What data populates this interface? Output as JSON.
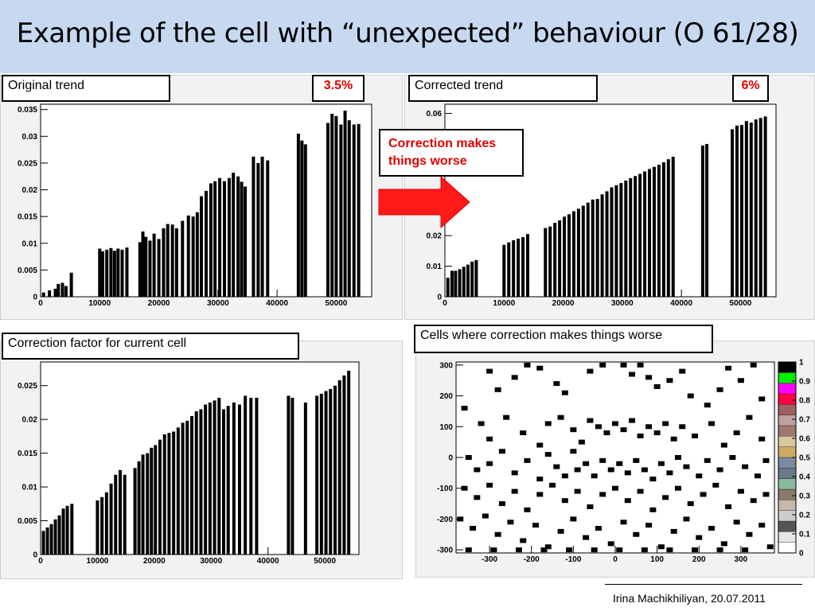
{
  "slide": {
    "title": "Example of the cell with “unexpected” behaviour (O 61/28)",
    "footer": "Irina Machikhiliyan, 20.07.2011",
    "note": "Correction makes things worse"
  },
  "panels": {
    "original": {
      "label": "Original trend",
      "percent": "3.5%"
    },
    "corrected": {
      "label": "Corrected trend",
      "percent": "6%"
    },
    "factor": {
      "label": "Correction factor for current cell"
    },
    "cells": {
      "label": "Cells where correction makes things worse"
    }
  },
  "colors": {
    "accent_red": "#ff1a1a",
    "title_bg": "#c6d9f1"
  },
  "icons": {
    "arrow": "right-arrow-icon"
  },
  "chart_data": [
    {
      "type": "bar",
      "name": "original",
      "xlim": [
        0,
        56000
      ],
      "ylim": [
        0,
        0.036
      ],
      "xticks": [
        0,
        10000,
        20000,
        30000,
        40000,
        50000
      ],
      "xtick_labels": [
        "0",
        "10000",
        "20000",
        "30000",
        "40000",
        "50000"
      ],
      "yticks": [
        0,
        0.005,
        0.01,
        0.015,
        0.02,
        0.025,
        0.03,
        0.035
      ],
      "ytick_labels": [
        "0",
        "0.005",
        "0.01",
        "0.015",
        "0.02",
        "0.025",
        "0.03",
        "0.035"
      ],
      "x": [
        500,
        1500,
        2500,
        3000,
        3700,
        4300,
        5200,
        10000,
        10500,
        11200,
        11900,
        12500,
        13100,
        13800,
        14600,
        16800,
        17300,
        17800,
        18500,
        19200,
        20000,
        20800,
        21500,
        22300,
        23000,
        24000,
        25000,
        25800,
        26500,
        27200,
        28000,
        28800,
        29500,
        30300,
        31100,
        31900,
        32600,
        33400,
        34000,
        34600,
        36000,
        36800,
        37500,
        38400,
        43600,
        44200,
        44800,
        48600,
        49300,
        50000,
        50800,
        51500,
        52200,
        53000,
        53800
      ],
      "y": [
        0.0008,
        0.0012,
        0.0015,
        0.0024,
        0.0026,
        0.002,
        0.0045,
        0.009,
        0.0085,
        0.0088,
        0.0091,
        0.0086,
        0.009,
        0.0088,
        0.0092,
        0.0102,
        0.0122,
        0.0112,
        0.0105,
        0.0118,
        0.0108,
        0.0128,
        0.0136,
        0.0135,
        0.0128,
        0.0142,
        0.0152,
        0.015,
        0.0158,
        0.0188,
        0.0198,
        0.0212,
        0.0216,
        0.0222,
        0.0216,
        0.0222,
        0.0232,
        0.0225,
        0.0215,
        0.0206,
        0.0262,
        0.025,
        0.0262,
        0.0255,
        0.0305,
        0.0292,
        0.0285,
        0.0325,
        0.0342,
        0.0338,
        0.0322,
        0.0348,
        0.033,
        0.0322,
        0.0323
      ]
    },
    {
      "type": "bar",
      "name": "corrected",
      "xlim": [
        0,
        56000
      ],
      "ylim": [
        0,
        0.063
      ],
      "xticks": [
        0,
        10000,
        20000,
        30000,
        40000,
        50000
      ],
      "xtick_labels": [
        "0",
        "10000",
        "20000",
        "30000",
        "40000",
        "50000"
      ],
      "yticks": [
        0,
        0.01,
        0.02,
        0.06
      ],
      "ytick_labels": [
        "0",
        "0.01",
        "0.02",
        "0.06"
      ],
      "x": [
        500,
        1200,
        1800,
        2500,
        3200,
        3900,
        4600,
        5300,
        10000,
        10800,
        11600,
        12400,
        13200,
        14000,
        17000,
        17800,
        18600,
        19400,
        20200,
        21000,
        21800,
        22600,
        23400,
        24200,
        25000,
        25800,
        26600,
        27400,
        28200,
        29000,
        29800,
        30600,
        31400,
        32200,
        33000,
        33800,
        34600,
        35400,
        36200,
        37000,
        37800,
        38600,
        43600,
        44300,
        48600,
        49400,
        50200,
        51000,
        51800,
        52600,
        53400,
        54200
      ],
      "y": [
        0.0062,
        0.0085,
        0.0085,
        0.009,
        0.0098,
        0.0105,
        0.0115,
        0.012,
        0.017,
        0.0178,
        0.0185,
        0.019,
        0.0195,
        0.0205,
        0.0225,
        0.023,
        0.0242,
        0.025,
        0.0262,
        0.027,
        0.028,
        0.0288,
        0.0298,
        0.0308,
        0.0318,
        0.032,
        0.0335,
        0.0345,
        0.0358,
        0.0365,
        0.0372,
        0.038,
        0.0388,
        0.0395,
        0.0402,
        0.041,
        0.0418,
        0.0425,
        0.0432,
        0.044,
        0.045,
        0.0458,
        0.0495,
        0.05,
        0.0548,
        0.056,
        0.0562,
        0.0575,
        0.057,
        0.058,
        0.0585,
        0.059
      ]
    },
    {
      "type": "bar",
      "name": "factor",
      "xlim": [
        0,
        56000
      ],
      "ylim": [
        0,
        0.0285
      ],
      "xticks": [
        0,
        10000,
        20000,
        30000,
        40000,
        50000
      ],
      "xtick_labels": [
        "0",
        "10000",
        "20000",
        "30000",
        "40000",
        "50000"
      ],
      "yticks": [
        0,
        0.005,
        0.01,
        0.015,
        0.02,
        0.025
      ],
      "ytick_labels": [
        "0",
        "0.005",
        "0.01",
        "0.015",
        "0.02",
        "0.025"
      ],
      "x": [
        500,
        1200,
        1900,
        2600,
        3300,
        4000,
        4700,
        5500,
        10000,
        10800,
        11600,
        12400,
        13200,
        14000,
        14800,
        16600,
        17300,
        18000,
        18800,
        19500,
        20200,
        21000,
        21800,
        22600,
        23400,
        24200,
        25000,
        25800,
        26600,
        27400,
        28200,
        29000,
        29800,
        30600,
        31400,
        32200,
        33000,
        34000,
        35000,
        36000,
        37000,
        38000,
        43600,
        44300,
        46600,
        48600,
        49400,
        50200,
        51000,
        51800,
        52600,
        53400,
        54200
      ],
      "y": [
        0.0035,
        0.004,
        0.0045,
        0.0052,
        0.0058,
        0.0068,
        0.0072,
        0.0075,
        0.008,
        0.0085,
        0.0092,
        0.0105,
        0.0118,
        0.0125,
        0.0118,
        0.0128,
        0.0138,
        0.0148,
        0.015,
        0.0158,
        0.0162,
        0.017,
        0.0178,
        0.018,
        0.0182,
        0.0188,
        0.0195,
        0.0198,
        0.0205,
        0.0212,
        0.0215,
        0.0222,
        0.0225,
        0.0228,
        0.0232,
        0.0215,
        0.022,
        0.0225,
        0.0222,
        0.0235,
        0.0232,
        0.0232,
        0.0235,
        0.0232,
        0.0225,
        0.0235,
        0.0238,
        0.0242,
        0.0245,
        0.025,
        0.0258,
        0.0265,
        0.0272
      ]
    },
    {
      "type": "heatmap",
      "name": "cells",
      "xlim": [
        -380,
        380
      ],
      "ylim": [
        -310,
        310
      ],
      "xticks": [
        -300,
        -200,
        -100,
        0,
        100,
        200,
        300
      ],
      "xtick_labels": [
        "-300",
        "-200",
        "-100",
        "0",
        "100",
        "200",
        "300"
      ],
      "yticks": [
        -300,
        -200,
        -100,
        0,
        100,
        200,
        300
      ],
      "ytick_labels": [
        "-300",
        "-200",
        "-100",
        "0",
        "100",
        "200",
        "300"
      ],
      "colorbar_ticks": [
        0,
        0.1,
        0.2,
        0.3,
        0.4,
        0.5,
        0.6,
        0.7,
        0.8,
        0.9,
        1
      ],
      "colorbar_labels": [
        "0",
        "0.1",
        "0.2",
        "0.3",
        "0.4",
        "0.5",
        "0.6",
        "0.7",
        "0.8",
        "0.9",
        "1"
      ],
      "colorbar_colors": [
        "#ffffff",
        "#e6e6e6",
        "#555555",
        "#cccccc",
        "#c4b8a8",
        "#8a7a6a",
        "#8ab8a0",
        "#6a7a8a",
        "#7a8aa0",
        "#ccaa66",
        "#d8c8a0",
        "#a07870",
        "#c0a0a0",
        "#a06060",
        "#ff0040",
        "#ff00ff",
        "#00ee00",
        "#000000"
      ],
      "cells": [
        [
          -300,
          280
        ],
        [
          -280,
          220
        ],
        [
          -240,
          260
        ],
        [
          -210,
          300
        ],
        [
          -180,
          290
        ],
        [
          -140,
          240
        ],
        [
          -120,
          210
        ],
        [
          -60,
          280
        ],
        [
          -30,
          300
        ],
        [
          20,
          300
        ],
        [
          40,
          270
        ],
        [
          60,
          300
        ],
        [
          80,
          260
        ],
        [
          100,
          230
        ],
        [
          130,
          250
        ],
        [
          160,
          280
        ],
        [
          180,
          200
        ],
        [
          220,
          170
        ],
        [
          250,
          220
        ],
        [
          270,
          290
        ],
        [
          300,
          250
        ],
        [
          330,
          300
        ],
        [
          350,
          190
        ],
        [
          -360,
          160
        ],
        [
          -320,
          110
        ],
        [
          -300,
          60
        ],
        [
          -260,
          130
        ],
        [
          -220,
          80
        ],
        [
          -180,
          40
        ],
        [
          -160,
          110
        ],
        [
          -130,
          130
        ],
        [
          -100,
          90
        ],
        [
          -80,
          50
        ],
        [
          -60,
          120
        ],
        [
          -40,
          100
        ],
        [
          -20,
          80
        ],
        [
          0,
          110
        ],
        [
          20,
          90
        ],
        [
          40,
          120
        ],
        [
          60,
          70
        ],
        [
          80,
          100
        ],
        [
          100,
          80
        ],
        [
          120,
          110
        ],
        [
          140,
          60
        ],
        [
          160,
          100
        ],
        [
          190,
          70
        ],
        [
          230,
          110
        ],
        [
          260,
          40
        ],
        [
          290,
          80
        ],
        [
          320,
          130
        ],
        [
          350,
          60
        ],
        [
          -350,
          0
        ],
        [
          -330,
          -40
        ],
        [
          -300,
          -20
        ],
        [
          -270,
          20
        ],
        [
          -240,
          -50
        ],
        [
          -210,
          -10
        ],
        [
          -180,
          -70
        ],
        [
          -160,
          10
        ],
        [
          -140,
          -30
        ],
        [
          -120,
          -60
        ],
        [
          -100,
          20
        ],
        [
          -90,
          -40
        ],
        [
          -70,
          -20
        ],
        [
          -50,
          -60
        ],
        [
          -30,
          -10
        ],
        [
          -10,
          -40
        ],
        [
          10,
          -20
        ],
        [
          30,
          -50
        ],
        [
          50,
          -10
        ],
        [
          70,
          -40
        ],
        [
          90,
          -70
        ],
        [
          110,
          -20
        ],
        [
          130,
          -50
        ],
        [
          150,
          0
        ],
        [
          170,
          -30
        ],
        [
          200,
          -60
        ],
        [
          220,
          -10
        ],
        [
          250,
          -40
        ],
        [
          280,
          0
        ],
        [
          310,
          -30
        ],
        [
          340,
          -60
        ],
        [
          360,
          -10
        ],
        [
          -360,
          -100
        ],
        [
          -330,
          -130
        ],
        [
          -300,
          -90
        ],
        [
          -270,
          -150
        ],
        [
          -240,
          -110
        ],
        [
          -210,
          -170
        ],
        [
          -180,
          -120
        ],
        [
          -150,
          -90
        ],
        [
          -120,
          -140
        ],
        [
          -90,
          -110
        ],
        [
          -60,
          -160
        ],
        [
          -30,
          -120
        ],
        [
          0,
          -100
        ],
        [
          30,
          -140
        ],
        [
          60,
          -110
        ],
        [
          90,
          -170
        ],
        [
          120,
          -130
        ],
        [
          150,
          -100
        ],
        [
          180,
          -150
        ],
        [
          210,
          -120
        ],
        [
          240,
          -90
        ],
        [
          270,
          -160
        ],
        [
          300,
          -110
        ],
        [
          330,
          -140
        ],
        [
          360,
          -120
        ],
        [
          -370,
          -200
        ],
        [
          -340,
          -230
        ],
        [
          -310,
          -190
        ],
        [
          -280,
          -250
        ],
        [
          -250,
          -210
        ],
        [
          -220,
          -270
        ],
        [
          -190,
          -220
        ],
        [
          -160,
          -290
        ],
        [
          -130,
          -240
        ],
        [
          -100,
          -200
        ],
        [
          -70,
          -260
        ],
        [
          -40,
          -230
        ],
        [
          -10,
          -280
        ],
        [
          20,
          -210
        ],
        [
          50,
          -250
        ],
        [
          80,
          -220
        ],
        [
          110,
          -290
        ],
        [
          140,
          -240
        ],
        [
          170,
          -200
        ],
        [
          200,
          -260
        ],
        [
          230,
          -230
        ],
        [
          260,
          -280
        ],
        [
          290,
          -210
        ],
        [
          320,
          -250
        ],
        [
          350,
          -220
        ],
        [
          370,
          -290
        ],
        [
          -350,
          -300
        ],
        [
          -290,
          -300
        ],
        [
          -230,
          -300
        ],
        [
          -170,
          -300
        ],
        [
          -110,
          -300
        ],
        [
          -50,
          -300
        ],
        [
          10,
          -300
        ],
        [
          70,
          -300
        ],
        [
          130,
          -300
        ],
        [
          190,
          -300
        ],
        [
          250,
          -300
        ],
        [
          310,
          -300
        ]
      ]
    }
  ]
}
